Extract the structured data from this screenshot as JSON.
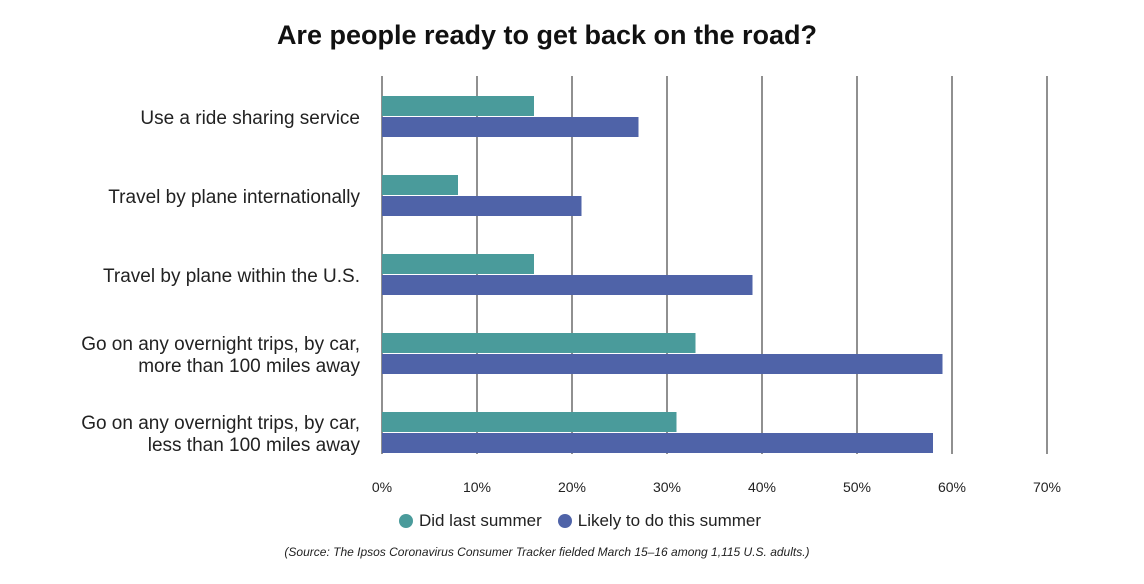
{
  "chart_data": {
    "type": "bar",
    "orientation": "horizontal",
    "title": "Are people ready to get back on the road?",
    "categories": [
      [
        "Use a ride sharing service"
      ],
      [
        "Travel by plane internationally"
      ],
      [
        "Travel by plane within the U.S."
      ],
      [
        "Go on any overnight trips, by car,",
        "more than 100 miles away"
      ],
      [
        "Go on any overnight trips, by car,",
        "less than 100 miles away"
      ]
    ],
    "series": [
      {
        "name": "Did last summer",
        "color": "#4a9b9b",
        "values": [
          16,
          8,
          16,
          33,
          31
        ]
      },
      {
        "name": "Likely to do this summer",
        "color": "#4f63a8",
        "values": [
          27,
          21,
          39,
          59,
          58
        ]
      }
    ],
    "xlim": [
      0,
      70
    ],
    "xticks": [
      "0%",
      "10%",
      "20%",
      "30%",
      "40%",
      "50%",
      "60%",
      "70%"
    ],
    "grid": true,
    "legend": "bottom",
    "source": "(Source: The Ipsos Coronavirus Consumer Tracker fielded March 15–16 among 1,115 U.S. adults.)"
  }
}
